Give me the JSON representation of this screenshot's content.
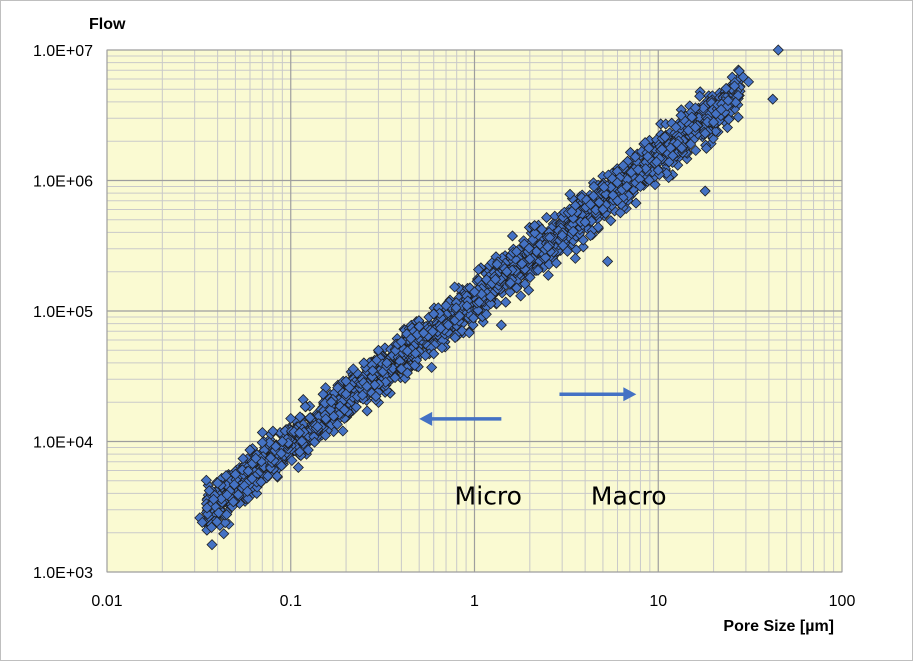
{
  "chart_data": {
    "type": "scatter",
    "ylabel": "Flow",
    "xlabel": "Pore Size [µm]",
    "x_scale": "log",
    "y_scale": "log",
    "xlim": [
      0.01,
      100
    ],
    "ylim": [
      1000,
      10000000
    ],
    "x_ticks": [
      {
        "value": 0.01,
        "label": "0.01"
      },
      {
        "value": 0.1,
        "label": "0.1"
      },
      {
        "value": 1,
        "label": "1"
      },
      {
        "value": 10,
        "label": "10"
      },
      {
        "value": 100,
        "label": "100"
      }
    ],
    "y_ticks": [
      {
        "value": 1000,
        "label": "1.0E+03"
      },
      {
        "value": 10000,
        "label": "1.0E+04"
      },
      {
        "value": 100000,
        "label": "1.0E+05"
      },
      {
        "value": 1000000,
        "label": "1.0E+06"
      },
      {
        "value": 10000000,
        "label": "1.0E+07"
      }
    ],
    "grid": true,
    "legend": "none",
    "plot_background": "#fafad2",
    "marker": {
      "shape": "diamond",
      "fill": "#4472c4",
      "stroke": "#1f1f1f"
    },
    "annotations": [
      {
        "text": "Micro",
        "x": 0.78,
        "y": 3300
      },
      {
        "text": "Macro",
        "x": 4.3,
        "y": 3300
      }
    ],
    "arrows": [
      {
        "name": "micro-arrow",
        "from": [
          1.4,
          14900
        ],
        "to": [
          0.5,
          14900
        ],
        "color": "#4472c4"
      },
      {
        "name": "macro-arrow",
        "from": [
          2.9,
          23000
        ],
        "to": [
          7.6,
          23000
        ],
        "color": "#4472c4"
      }
    ],
    "series": [
      {
        "trend": {
          "x0": 0.033,
          "y0": 2800,
          "x1": 45,
          "y1": 8000000
        },
        "point_count": 2400,
        "points": [
          [
            0.032,
            2600
          ],
          [
            0.033,
            2400
          ],
          [
            0.035,
            3100
          ],
          [
            0.036,
            4200
          ],
          [
            0.038,
            3600
          ],
          [
            0.04,
            4800
          ],
          [
            0.045,
            3900
          ],
          [
            0.05,
            5600
          ],
          [
            0.055,
            7400
          ],
          [
            0.06,
            8600
          ],
          [
            0.07,
            9800
          ],
          [
            0.08,
            12000
          ],
          [
            0.1,
            15000
          ],
          [
            0.12,
            18500
          ],
          [
            0.15,
            23000
          ],
          [
            0.2,
            29000
          ],
          [
            0.25,
            40000
          ],
          [
            0.3,
            50000
          ],
          [
            0.4,
            58000
          ],
          [
            0.5,
            76000
          ],
          [
            0.6,
            95000
          ],
          [
            0.7,
            110000
          ],
          [
            1,
            140000
          ],
          [
            1.3,
            175000
          ],
          [
            1.5,
            200000
          ],
          [
            2,
            250000
          ],
          [
            2.5,
            310000
          ],
          [
            3,
            380000
          ],
          [
            4,
            480000
          ],
          [
            5,
            600000
          ],
          [
            6,
            700000
          ],
          [
            8,
            900000
          ],
          [
            10,
            1200000
          ],
          [
            12,
            1550000
          ],
          [
            15,
            1900000
          ],
          [
            18,
            2300000
          ],
          [
            20,
            2800000
          ],
          [
            22,
            3500000
          ],
          [
            24,
            4100000
          ],
          [
            26,
            5300000
          ],
          [
            29,
            6200000
          ],
          [
            31,
            5700000
          ],
          [
            42,
            4200000
          ],
          [
            45,
            10000000
          ],
          [
            5.3,
            240000
          ],
          [
            18,
            830000
          ],
          [
            1.4,
            78000
          ],
          [
            0.4,
            36000
          ],
          [
            0.6,
            47000
          ],
          [
            0.14,
            13000
          ],
          [
            0.09,
            10000
          ]
        ]
      }
    ]
  }
}
